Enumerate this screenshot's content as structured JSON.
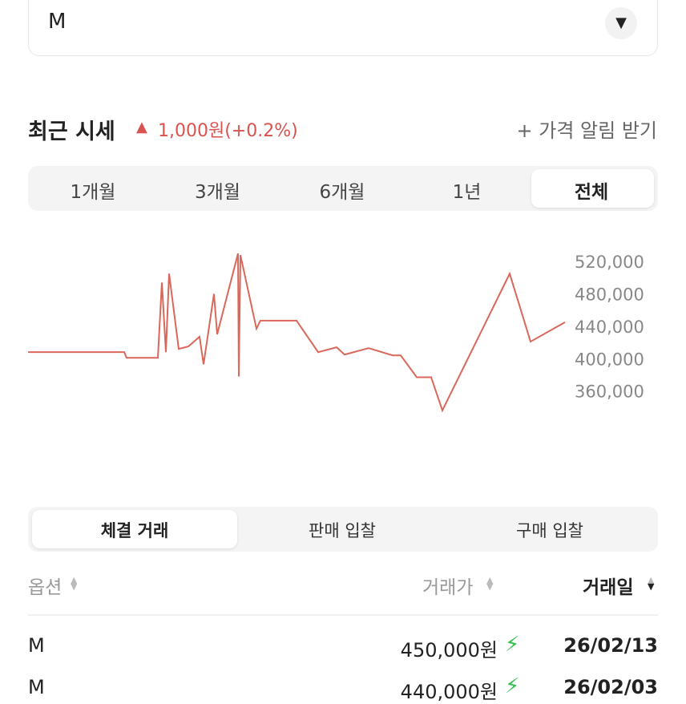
{
  "dropdown": {
    "value": "M"
  },
  "price_header": {
    "title": "최근 시세",
    "change": "1,000원(+0.2%)",
    "alert_link": "+ 가격 알림 받기"
  },
  "period_tabs": [
    "1개월",
    "3개월",
    "6개월",
    "1년",
    "전체"
  ],
  "chart_data": {
    "type": "line",
    "color": "#d9675a",
    "x": [
      0,
      120,
      123,
      162,
      167,
      172,
      176,
      188,
      200,
      214,
      219,
      232,
      236,
      262,
      263,
      265,
      285,
      290,
      335,
      362,
      385,
      395,
      425,
      455,
      465,
      485,
      503,
      517,
      601,
      627,
      670
    ],
    "values": [
      410000,
      410000,
      403000,
      403000,
      496000,
      410000,
      507000,
      414000,
      417000,
      429000,
      395000,
      482000,
      432000,
      532000,
      380000,
      530000,
      439000,
      449000,
      449000,
      410000,
      416000,
      407000,
      415000,
      406000,
      406000,
      379000,
      379000,
      338000,
      507000,
      423000,
      447000
    ],
    "xlim": [
      0,
      670
    ],
    "ylim": [
      320000,
      540000
    ],
    "yticks": [
      {
        "value": 520000,
        "label": "520,000"
      },
      {
        "value": 480000,
        "label": "480,000"
      },
      {
        "value": 440000,
        "label": "440,000"
      },
      {
        "value": 400000,
        "label": "400,000"
      },
      {
        "value": 360000,
        "label": "360,000"
      }
    ]
  },
  "trade_tabs": [
    "체결 거래",
    "판매 입찰",
    "구매 입찰"
  ],
  "table": {
    "headers": [
      "옵션",
      "거래가",
      "거래일"
    ],
    "rows": [
      [
        "M",
        "450,000원",
        "26/02/13"
      ],
      [
        "M",
        "440,000원",
        "26/02/03"
      ]
    ]
  }
}
